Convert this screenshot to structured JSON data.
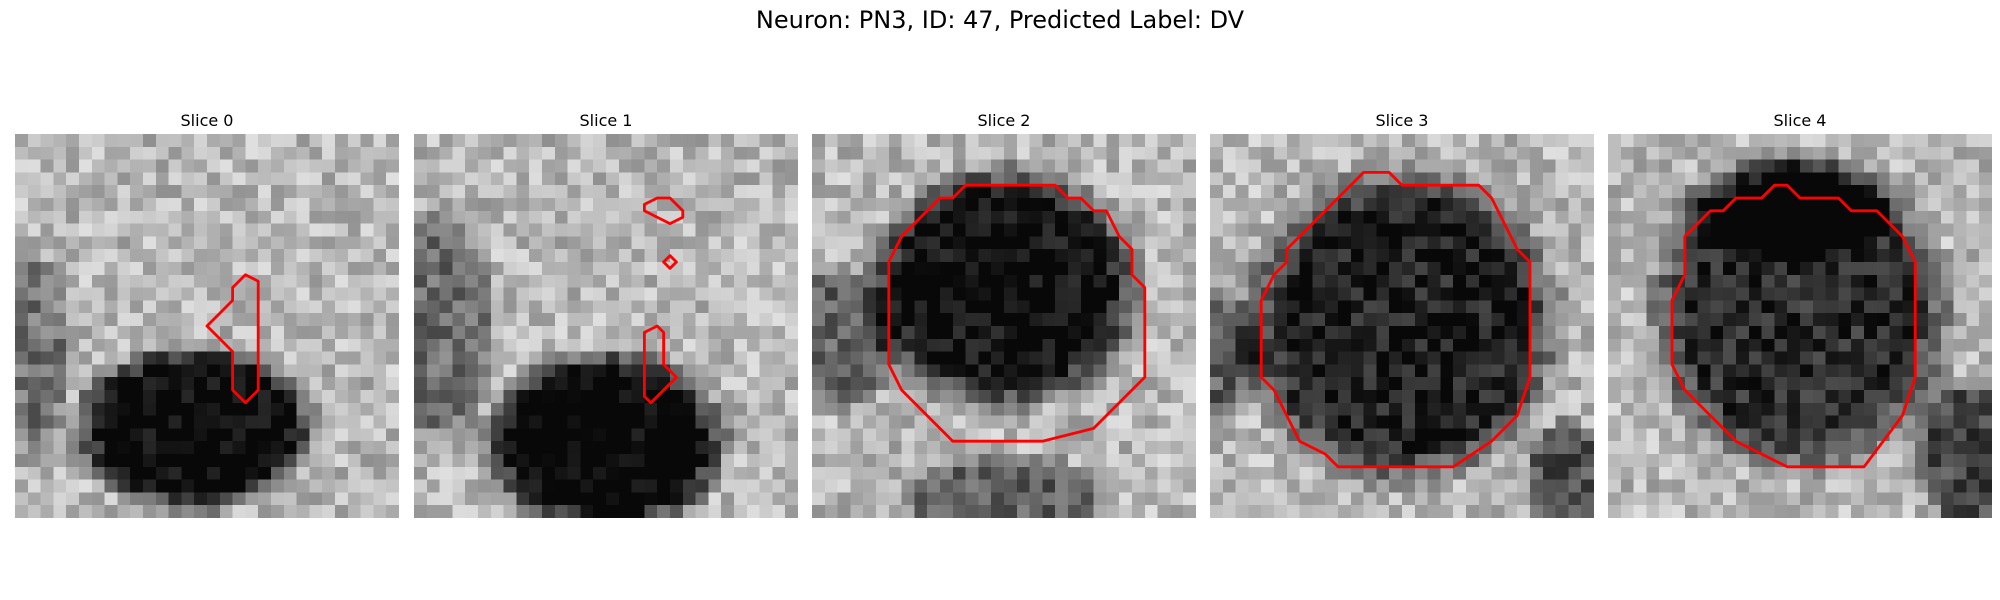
{
  "figure": {
    "title": "Neuron: PN3, ID: 47, Predicted Label: DV",
    "contour_color": "#ff0000"
  },
  "panels": [
    {
      "title": "Slice 0",
      "contours": [
        [
          [
            18,
            11
          ],
          [
            19,
            11.5
          ],
          [
            19,
            20
          ],
          [
            18,
            21
          ],
          [
            17,
            20
          ],
          [
            17,
            17
          ],
          [
            16,
            16
          ],
          [
            15,
            15
          ],
          [
            16,
            14
          ],
          [
            17,
            13
          ],
          [
            17,
            12
          ]
        ]
      ]
    },
    {
      "title": "Slice 1",
      "contours": [
        [
          [
            19,
            5
          ],
          [
            20,
            5
          ],
          [
            21,
            6
          ],
          [
            21,
            6.5
          ],
          [
            20,
            7
          ],
          [
            19,
            6.5
          ],
          [
            18,
            6
          ],
          [
            18,
            5.5
          ]
        ],
        [
          [
            20,
            9.5
          ],
          [
            20.5,
            10
          ],
          [
            20,
            10.5
          ],
          [
            19.5,
            10
          ]
        ],
        [
          [
            19,
            15
          ],
          [
            19.5,
            15.5
          ],
          [
            19.5,
            18
          ],
          [
            20.5,
            19
          ],
          [
            19.5,
            20
          ],
          [
            18.5,
            21
          ],
          [
            18,
            20.5
          ],
          [
            18,
            15.5
          ]
        ]
      ]
    },
    {
      "title": "Slice 2",
      "contours": [
        [
          [
            12,
            4
          ],
          [
            19,
            4
          ],
          [
            20,
            5
          ],
          [
            21,
            5
          ],
          [
            22,
            6
          ],
          [
            23,
            6
          ],
          [
            24,
            8
          ],
          [
            25,
            9
          ],
          [
            25,
            11
          ],
          [
            26,
            12
          ],
          [
            26,
            19
          ],
          [
            25,
            20
          ],
          [
            22,
            23
          ],
          [
            18,
            24
          ],
          [
            11,
            24
          ],
          [
            9,
            22
          ],
          [
            7,
            20
          ],
          [
            6,
            18
          ],
          [
            6,
            10
          ],
          [
            7,
            8
          ],
          [
            9,
            6
          ],
          [
            10,
            5
          ],
          [
            11,
            5
          ]
        ]
      ]
    },
    {
      "title": "Slice 3",
      "contours": [
        [
          [
            12,
            3
          ],
          [
            14,
            3
          ],
          [
            15,
            4
          ],
          [
            21,
            4
          ],
          [
            22,
            5
          ],
          [
            23,
            7
          ],
          [
            24,
            9
          ],
          [
            25,
            10
          ],
          [
            25,
            19
          ],
          [
            24,
            22
          ],
          [
            22,
            24
          ],
          [
            19,
            26
          ],
          [
            10,
            26
          ],
          [
            9,
            25
          ],
          [
            7,
            24
          ],
          [
            6,
            22
          ],
          [
            5,
            20
          ],
          [
            4,
            19
          ],
          [
            4,
            13
          ],
          [
            5,
            11
          ],
          [
            6,
            10
          ],
          [
            6,
            9
          ],
          [
            7,
            8
          ],
          [
            8,
            7
          ],
          [
            10,
            5
          ],
          [
            11,
            4
          ]
        ]
      ]
    },
    {
      "title": "Slice 4",
      "contours": [
        [
          [
            13,
            4
          ],
          [
            14,
            4
          ],
          [
            15,
            5
          ],
          [
            18,
            5
          ],
          [
            19,
            6
          ],
          [
            21,
            6
          ],
          [
            23,
            8
          ],
          [
            24,
            10
          ],
          [
            24,
            19
          ],
          [
            23,
            22
          ],
          [
            20,
            26
          ],
          [
            14,
            26
          ],
          [
            12,
            25
          ],
          [
            10,
            24
          ],
          [
            8,
            22
          ],
          [
            6,
            20
          ],
          [
            5,
            18
          ],
          [
            5,
            13
          ],
          [
            6,
            11
          ],
          [
            6,
            8
          ],
          [
            7,
            7
          ],
          [
            8,
            6
          ],
          [
            9,
            6
          ],
          [
            10,
            5
          ],
          [
            12,
            5
          ]
        ]
      ]
    }
  ]
}
